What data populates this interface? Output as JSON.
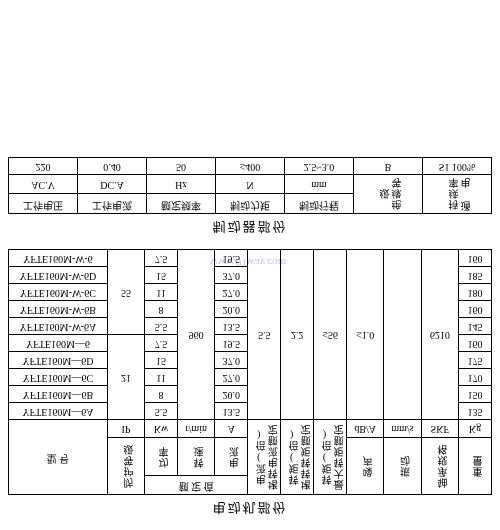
{
  "section1": {
    "title": "电动机部份",
    "headers": {
      "model": "型 号",
      "protection": "防护等级",
      "protection_unit": "IP",
      "rated_group": "额 定 值",
      "power": "功率",
      "power_unit": "Kw",
      "speed": "转速",
      "speed_unit": "r/min",
      "current": "电流",
      "current_unit": "A",
      "stall_current": "堵转电流额定电流(倍)",
      "stall_torque": "堵转转矩额定转矩(倍)",
      "max_torque": "最大转矩额定转矩(倍)",
      "noise": "噪声",
      "noise_unit": "dB/A",
      "vibration": "振动",
      "vibration_unit": "mm/s",
      "bearing": "轴承规格",
      "bearing_unit": "SKF",
      "weight": "重量",
      "weight_unit": "Kg"
    },
    "shared": {
      "speed_val": "960",
      "stall_current_val": "5.5",
      "stall_torque_val": "2.2",
      "max_torque_val": "≤56",
      "noise_val": "≤1.0",
      "vibration_val": "",
      "bearing_val": "6210",
      "protection_21": "21",
      "protection_55": "55"
    },
    "rows": [
      {
        "model": "YFTE160M—6A",
        "power": "5.5",
        "current": "13.5",
        "weight": "135"
      },
      {
        "model": "YFTE160M—6B",
        "power": "8",
        "current": "20.0",
        "weight": "150"
      },
      {
        "model": "YFTE160M—6C",
        "power": "11",
        "current": "27.0",
        "weight": "170"
      },
      {
        "model": "YFTE160M—6D",
        "power": "15",
        "current": "37.0",
        "weight": "175"
      },
      {
        "model": "YFTE160M—6",
        "power": "7.5",
        "current": "19.5",
        "weight": "160"
      },
      {
        "model": "YFTE160M-W-6A",
        "power": "5.5",
        "current": "13.5",
        "weight": "145"
      },
      {
        "model": "YFTE160M-W-6B",
        "power": "8",
        "current": "20.0",
        "weight": "160"
      },
      {
        "model": "YFTE160M-W-6C",
        "power": "11",
        "current": "27.0",
        "weight": "180"
      },
      {
        "model": "YFTE160M-W-6D",
        "power": "15",
        "current": "37.0",
        "weight": "185"
      },
      {
        "model": "YFTE160M-W-6",
        "power": "7.5",
        "current": "19.5",
        "weight": "160"
      }
    ]
  },
  "section2": {
    "title": "制动器部份",
    "headers": {
      "voltage": "工作电压",
      "voltage_unit": "AC.V",
      "current": "工作电流",
      "current_unit": "DC.A",
      "freq": "额定频率",
      "freq_unit": "Hz",
      "torque": "制动力矩",
      "torque_unit": "N",
      "stroke": "制动行程",
      "stroke_unit": "mm",
      "insul": "绝缘等级",
      "duty": "通 电持续率"
    },
    "row": {
      "voltage": "220",
      "current": "0.40",
      "freq": "50",
      "torque": "≤400",
      "stroke": "2.5~3.0",
      "insul": "B",
      "duty": "S1 100%"
    }
  },
  "watermark": "www.91way.com"
}
